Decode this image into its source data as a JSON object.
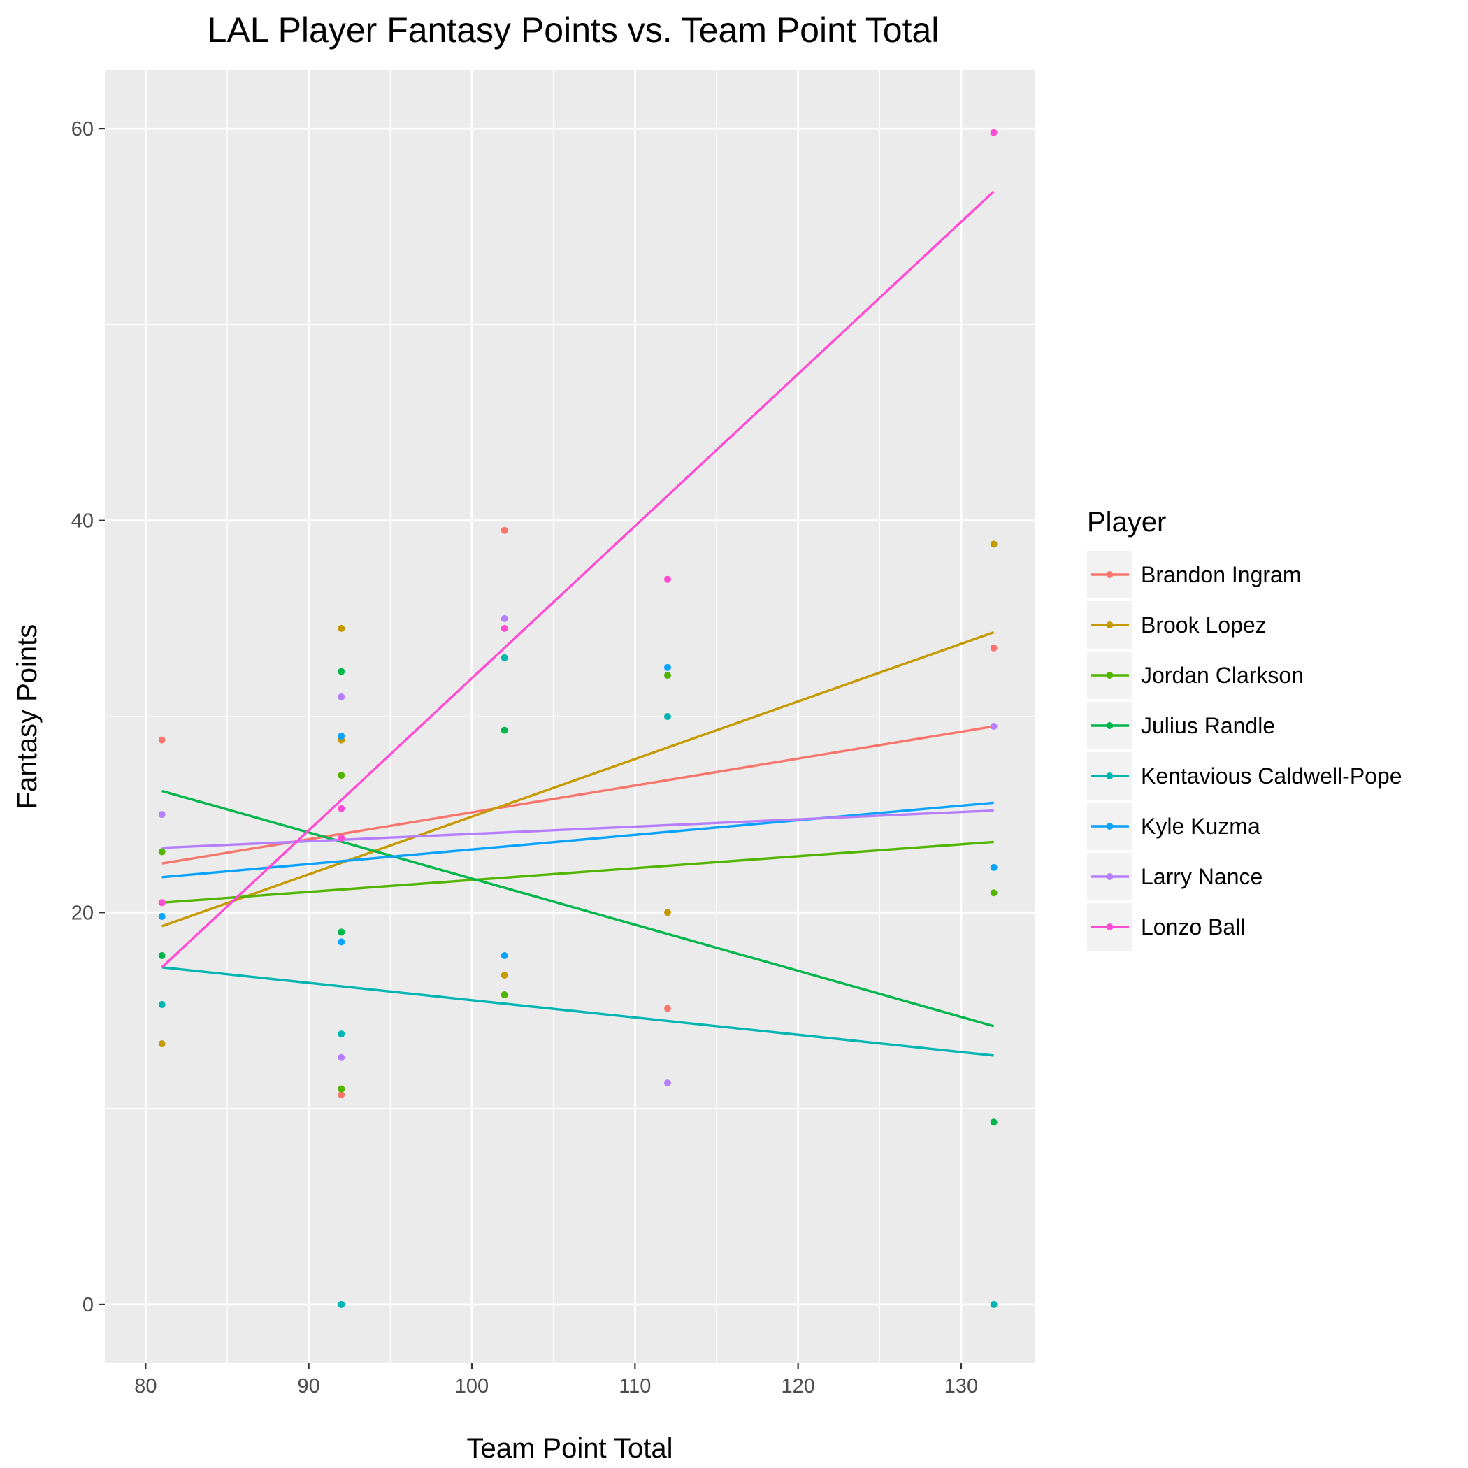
{
  "chart_data": {
    "type": "scatter",
    "title": "LAL Player Fantasy Points vs. Team Point Total",
    "xlabel": "Team Point Total",
    "ylabel": "Fantasy Points",
    "xlim": [
      77.5,
      134.5
    ],
    "ylim": [
      -3,
      63
    ],
    "x_ticks": [
      80,
      90,
      100,
      110,
      120,
      130
    ],
    "y_ticks": [
      0,
      20,
      40,
      60
    ],
    "grid": true,
    "legend_title": "Player",
    "legend_position": "right",
    "series": [
      {
        "name": "Brandon Ingram",
        "color": "#F8766D",
        "points": [
          [
            81,
            28.8
          ],
          [
            92,
            10.7
          ],
          [
            102,
            39.5
          ],
          [
            112,
            15.1
          ],
          [
            132,
            33.5
          ]
        ],
        "fit": [
          [
            81,
            22.5
          ],
          [
            132,
            29.5
          ]
        ]
      },
      {
        "name": "Brook Lopez",
        "color": "#C49A00",
        "points": [
          [
            81,
            13.3
          ],
          [
            92,
            28.8
          ],
          [
            92,
            34.5
          ],
          [
            102,
            16.8
          ],
          [
            112,
            20.0
          ],
          [
            132,
            38.8
          ]
        ],
        "fit": [
          [
            81,
            19.3
          ],
          [
            132,
            34.3
          ]
        ]
      },
      {
        "name": "Jordan Clarkson",
        "color": "#53B400",
        "points": [
          [
            81,
            23.1
          ],
          [
            92,
            11.0
          ],
          [
            92,
            27.0
          ],
          [
            102,
            15.8
          ],
          [
            112,
            32.1
          ],
          [
            132,
            21.0
          ]
        ],
        "fit": [
          [
            81,
            20.5
          ],
          [
            132,
            23.6
          ]
        ]
      },
      {
        "name": "Julius Randle",
        "color": "#00B64C",
        "points": [
          [
            81,
            17.8
          ],
          [
            92,
            19.0
          ],
          [
            92,
            32.3
          ],
          [
            102,
            29.3
          ],
          [
            132,
            9.3
          ]
        ],
        "fit": [
          [
            81,
            26.2
          ],
          [
            132,
            14.2
          ]
        ]
      },
      {
        "name": "Kentavious Caldwell-Pope",
        "color": "#00B5B1",
        "points": [
          [
            81,
            15.3
          ],
          [
            92,
            0.0
          ],
          [
            92,
            13.8
          ],
          [
            102,
            33.0
          ],
          [
            112,
            30.0
          ],
          [
            132,
            0.0
          ]
        ],
        "fit": [
          [
            81,
            17.2
          ],
          [
            132,
            12.7
          ]
        ]
      },
      {
        "name": "Kyle Kuzma",
        "color": "#0BA3FF",
        "points": [
          [
            81,
            19.8
          ],
          [
            92,
            29.0
          ],
          [
            92,
            18.5
          ],
          [
            102,
            17.8
          ],
          [
            112,
            32.5
          ],
          [
            132,
            22.3
          ]
        ],
        "fit": [
          [
            81,
            21.8
          ],
          [
            132,
            25.6
          ]
        ]
      },
      {
        "name": "Larry Nance",
        "color": "#B67FFF",
        "points": [
          [
            81,
            25.0
          ],
          [
            92,
            31.0
          ],
          [
            92,
            12.6
          ],
          [
            102,
            35.0
          ],
          [
            112,
            11.3
          ],
          [
            132,
            29.5
          ]
        ],
        "fit": [
          [
            81,
            23.3
          ],
          [
            132,
            25.2
          ]
        ]
      },
      {
        "name": "Lonzo Ball",
        "color": "#FF4DD3",
        "points": [
          [
            81,
            20.5
          ],
          [
            92,
            25.3
          ],
          [
            92,
            23.8
          ],
          [
            102,
            34.5
          ],
          [
            112,
            37.0
          ],
          [
            132,
            59.8
          ]
        ],
        "fit": [
          [
            81,
            17.2
          ],
          [
            132,
            56.8
          ]
        ]
      }
    ]
  }
}
